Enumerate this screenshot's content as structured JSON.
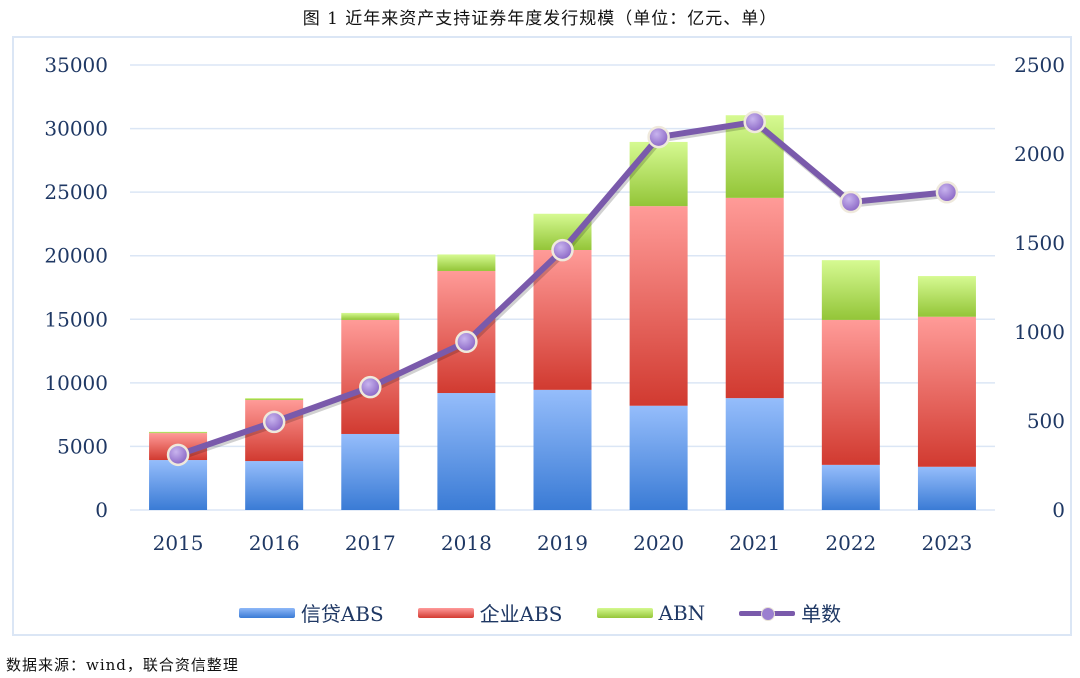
{
  "title": "图 1   近年来资产支持证券年度发行规模（单位：亿元、单）",
  "source": "数据来源：wind，联合资信整理",
  "legend": {
    "credit_abs": "信贷ABS",
    "corporate_abs": "企业ABS",
    "abn": "ABN",
    "count": "单数"
  },
  "colors": {
    "credit_abs": "#3a7bd5",
    "corporate_abs": "#d33b32",
    "abn": "#95c63a",
    "count": "#7a5aab",
    "axis_text": "#1f3864",
    "grid": "#dbe6f5"
  },
  "chart_data": {
    "type": "bar",
    "stacked": true,
    "title": "近年来资产支持证券年度发行规模（单位：亿元、单）",
    "categories": [
      "2015",
      "2016",
      "2017",
      "2018",
      "2019",
      "2020",
      "2021",
      "2022",
      "2023"
    ],
    "series": [
      {
        "name": "信贷ABS",
        "type": "bar",
        "axis": "left",
        "values": [
          3930,
          3850,
          5980,
          9200,
          9450,
          8200,
          8800,
          3550,
          3400
        ]
      },
      {
        "name": "企业ABS",
        "type": "bar",
        "axis": "left",
        "values": [
          2120,
          4800,
          8970,
          9600,
          11000,
          15700,
          15750,
          11400,
          11800
        ]
      },
      {
        "name": "ABN",
        "type": "bar",
        "axis": "left",
        "values": [
          100,
          150,
          550,
          1300,
          2850,
          5050,
          6500,
          4700,
          3200
        ]
      },
      {
        "name": "单数",
        "type": "line",
        "axis": "right",
        "values": [
          310,
          495,
          690,
          945,
          1460,
          2095,
          2180,
          1730,
          1785
        ]
      }
    ],
    "left_axis": {
      "label": "亿元",
      "ylim": [
        0,
        35000
      ],
      "ticks": [
        "0",
        "5000",
        "10000",
        "15000",
        "20000",
        "25000",
        "30000",
        "35000"
      ]
    },
    "right_axis": {
      "label": "单",
      "ylim": [
        0,
        2500
      ],
      "ticks": [
        "0",
        "500",
        "1000",
        "1500",
        "2000",
        "2500"
      ]
    },
    "grid": true,
    "legend_position": "bottom"
  }
}
